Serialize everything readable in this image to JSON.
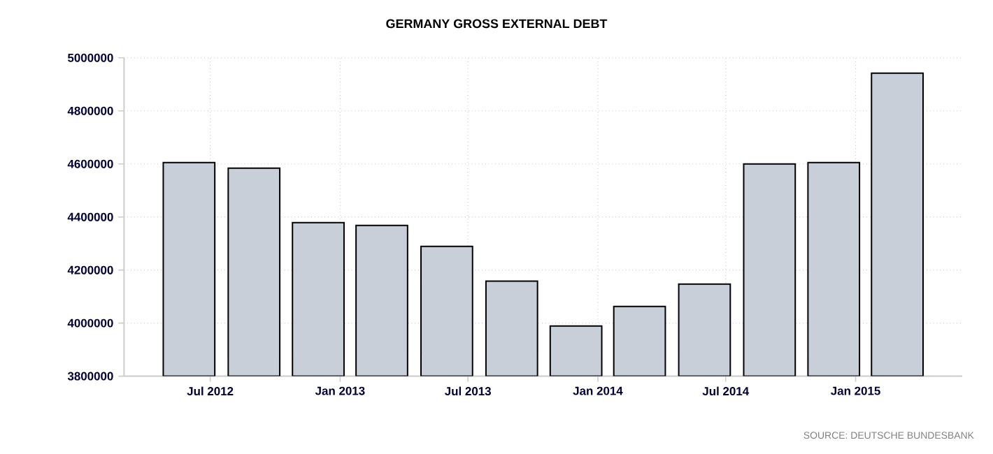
{
  "chart_data": {
    "type": "bar",
    "title": "GERMANY GROSS EXTERNAL DEBT",
    "x": [
      "2012-06",
      "2012-09",
      "2012-12",
      "2013-03",
      "2013-06",
      "2013-09",
      "2013-12",
      "2014-03",
      "2014-06",
      "2014-09",
      "2014-12",
      "2015-03"
    ],
    "values": [
      4605000,
      4584000,
      4379000,
      4368000,
      4289000,
      4158000,
      3989000,
      4063000,
      4147000,
      4600000,
      4605000,
      4942000
    ],
    "color": "#c8cfd8",
    "xlim": [
      "2012-03",
      "2015-06"
    ],
    "xticks": [
      {
        "value": "2012-07",
        "label": "Jul 2012"
      },
      {
        "value": "2013-01",
        "label": "Jan 2013"
      },
      {
        "value": "2013-07",
        "label": "Jul 2013"
      },
      {
        "value": "2014-01",
        "label": "Jan 2014"
      },
      {
        "value": "2014-07",
        "label": "Jul 2014"
      },
      {
        "value": "2015-01",
        "label": "Jan 2015"
      }
    ],
    "ylim": [
      3800000,
      5000000
    ],
    "yticks": [
      3800000,
      4000000,
      4200000,
      4400000,
      4600000,
      4800000,
      5000000
    ],
    "grid": true,
    "annotations": [
      "SOURCE: DEUTSCHE BUNDESBANK"
    ]
  }
}
